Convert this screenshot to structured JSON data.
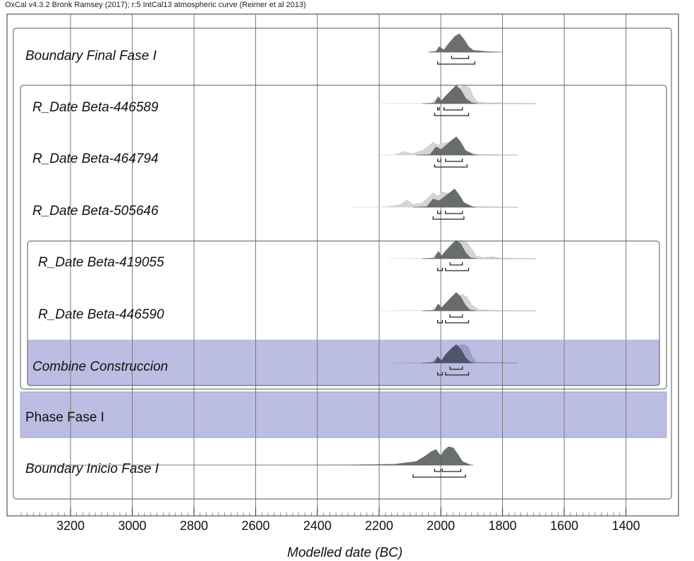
{
  "header": "OxCal v4.3.2 Bronk Ramsey (2017); r:5 IntCal13 atmospheric curve (Reimer et al 2013)",
  "chart_data": {
    "type": "density",
    "xlabel": "Modelled date (BC)",
    "xlim": [
      3380,
      1400
    ],
    "x_ticks": [
      3200,
      3000,
      2800,
      2600,
      2400,
      2200,
      2000,
      1800,
      1600,
      1400
    ],
    "grid": true,
    "rows": [
      {
        "label": "Boundary Final Fase I",
        "kind": "boundary",
        "range_68": [
          [
            1965,
            1910
          ]
        ],
        "range_95": [
          [
            2010,
            1890
          ]
        ],
        "prior": null,
        "posterior": [
          [
            2040,
            0
          ],
          [
            2015,
            0.05
          ],
          [
            2005,
            0.3
          ],
          [
            1990,
            0.12
          ],
          [
            1975,
            0.45
          ],
          [
            1955,
            0.85
          ],
          [
            1940,
            1.0
          ],
          [
            1925,
            0.7
          ],
          [
            1910,
            0.3
          ],
          [
            1895,
            0.1
          ],
          [
            1850,
            0.03
          ],
          [
            1800,
            0
          ]
        ]
      },
      {
        "label": "R_Date Beta-446589",
        "kind": "rdate",
        "range_68": [
          [
            2010,
            2005
          ],
          [
            1990,
            1930
          ]
        ],
        "range_95": [
          [
            2020,
            1910
          ]
        ],
        "prior": [
          [
            2200,
            0
          ],
          [
            2030,
            0.02
          ],
          [
            2010,
            0.35
          ],
          [
            1995,
            0.2
          ],
          [
            1980,
            0.5
          ],
          [
            1960,
            0.75
          ],
          [
            1945,
            0.85
          ],
          [
            1935,
            0.9
          ],
          [
            1920,
            1.0
          ],
          [
            1905,
            0.85
          ],
          [
            1895,
            0.4
          ],
          [
            1880,
            0.1
          ],
          [
            1850,
            0.04
          ],
          [
            1810,
            0.05
          ],
          [
            1790,
            0.02
          ],
          [
            1690,
            0
          ]
        ],
        "posterior": [
          [
            2060,
            0
          ],
          [
            2020,
            0.03
          ],
          [
            2008,
            0.38
          ],
          [
            1998,
            0.15
          ],
          [
            1985,
            0.4
          ],
          [
            1965,
            0.75
          ],
          [
            1950,
            1.0
          ],
          [
            1935,
            0.75
          ],
          [
            1920,
            0.3
          ],
          [
            1900,
            0.05
          ],
          [
            1880,
            0
          ]
        ]
      },
      {
        "label": "R_Date Beta-464794",
        "kind": "rdate",
        "range_68": [
          [
            2010,
            2000
          ],
          [
            1985,
            1930
          ]
        ],
        "range_95": [
          [
            2020,
            1915
          ]
        ],
        "prior": [
          [
            2210,
            0
          ],
          [
            2150,
            0.02
          ],
          [
            2120,
            0.2
          ],
          [
            2095,
            0.08
          ],
          [
            2060,
            0.25
          ],
          [
            2040,
            0.5
          ],
          [
            2025,
            0.7
          ],
          [
            2010,
            0.55
          ],
          [
            1995,
            0.65
          ],
          [
            1975,
            0.7
          ],
          [
            1955,
            0.85
          ],
          [
            1940,
            0.6
          ],
          [
            1920,
            0.25
          ],
          [
            1890,
            0.05
          ],
          [
            1750,
            0
          ]
        ],
        "posterior": [
          [
            2080,
            0
          ],
          [
            2035,
            0.03
          ],
          [
            2015,
            0.45
          ],
          [
            2000,
            0.3
          ],
          [
            1985,
            0.5
          ],
          [
            1965,
            0.8
          ],
          [
            1950,
            1.0
          ],
          [
            1935,
            0.7
          ],
          [
            1920,
            0.25
          ],
          [
            1895,
            0.03
          ],
          [
            1880,
            0
          ]
        ]
      },
      {
        "label": "R_Date Beta-505646",
        "kind": "rdate",
        "range_68": [
          [
            2010,
            2000
          ],
          [
            1985,
            1930
          ]
        ],
        "range_95": [
          [
            2025,
            1925
          ]
        ],
        "prior": [
          [
            2290,
            0
          ],
          [
            2180,
            0.02
          ],
          [
            2130,
            0.15
          ],
          [
            2110,
            0.4
          ],
          [
            2090,
            0.15
          ],
          [
            2060,
            0.25
          ],
          [
            2040,
            0.55
          ],
          [
            2025,
            0.8
          ],
          [
            2010,
            0.6
          ],
          [
            1995,
            0.85
          ],
          [
            1975,
            0.75
          ],
          [
            1960,
            0.95
          ],
          [
            1945,
            0.7
          ],
          [
            1925,
            0.25
          ],
          [
            1895,
            0.04
          ],
          [
            1750,
            0
          ]
        ],
        "posterior": [
          [
            2090,
            0
          ],
          [
            2045,
            0.03
          ],
          [
            2025,
            0.45
          ],
          [
            2005,
            0.35
          ],
          [
            1990,
            0.55
          ],
          [
            1970,
            0.8
          ],
          [
            1955,
            1.0
          ],
          [
            1940,
            0.65
          ],
          [
            1925,
            0.25
          ],
          [
            1900,
            0.03
          ],
          [
            1885,
            0
          ]
        ]
      },
      {
        "label": "R_Date Beta-419055",
        "kind": "rdate",
        "range_68": [
          [
            1970,
            1930
          ]
        ],
        "range_95": [
          [
            2010,
            1995
          ],
          [
            1985,
            1910
          ]
        ],
        "prior": [
          [
            2170,
            0
          ],
          [
            2030,
            0.02
          ],
          [
            2010,
            0.35
          ],
          [
            1998,
            0.15
          ],
          [
            1980,
            0.55
          ],
          [
            1965,
            0.85
          ],
          [
            1950,
            0.95
          ],
          [
            1935,
            1.0
          ],
          [
            1915,
            0.9
          ],
          [
            1900,
            0.55
          ],
          [
            1885,
            0.15
          ],
          [
            1860,
            0.05
          ],
          [
            1835,
            0.12
          ],
          [
            1815,
            0.05
          ],
          [
            1770,
            0.02
          ],
          [
            1690,
            0
          ]
        ],
        "posterior": [
          [
            2060,
            0
          ],
          [
            2020,
            0.03
          ],
          [
            2008,
            0.4
          ],
          [
            1997,
            0.15
          ],
          [
            1985,
            0.4
          ],
          [
            1965,
            0.75
          ],
          [
            1950,
            1.0
          ],
          [
            1935,
            0.8
          ],
          [
            1920,
            0.35
          ],
          [
            1905,
            0.06
          ],
          [
            1885,
            0
          ]
        ]
      },
      {
        "label": "R_Date Beta-446590",
        "kind": "rdate",
        "range_68": [
          [
            1970,
            1930
          ]
        ],
        "range_95": [
          [
            2010,
            1995
          ],
          [
            1985,
            1910
          ]
        ],
        "prior": [
          [
            2200,
            0
          ],
          [
            2030,
            0.02
          ],
          [
            2010,
            0.3
          ],
          [
            1998,
            0.15
          ],
          [
            1980,
            0.45
          ],
          [
            1960,
            0.75
          ],
          [
            1945,
            0.85
          ],
          [
            1930,
            0.9
          ],
          [
            1915,
            0.75
          ],
          [
            1900,
            0.35
          ],
          [
            1880,
            0.08
          ],
          [
            1840,
            0.04
          ],
          [
            1810,
            0.02
          ],
          [
            1690,
            0
          ]
        ],
        "posterior": [
          [
            2060,
            0
          ],
          [
            2020,
            0.03
          ],
          [
            2008,
            0.38
          ],
          [
            1998,
            0.15
          ],
          [
            1985,
            0.4
          ],
          [
            1965,
            0.75
          ],
          [
            1950,
            1.0
          ],
          [
            1935,
            0.75
          ],
          [
            1920,
            0.3
          ],
          [
            1905,
            0.05
          ],
          [
            1885,
            0
          ]
        ]
      },
      {
        "label": "Combine Construccion",
        "kind": "combine",
        "range_68": [
          [
            1970,
            1930
          ]
        ],
        "range_95": [
          [
            2010,
            1995
          ],
          [
            1985,
            1910
          ]
        ],
        "prior": [
          [
            2150,
            0
          ],
          [
            2030,
            0.02
          ],
          [
            2012,
            0.3
          ],
          [
            1998,
            0.1
          ],
          [
            1980,
            0.5
          ],
          [
            1960,
            0.85
          ],
          [
            1945,
            0.95
          ],
          [
            1925,
            1.0
          ],
          [
            1910,
            0.85
          ],
          [
            1898,
            0.3
          ],
          [
            1885,
            0.05
          ],
          [
            1750,
            0
          ]
        ],
        "posterior": [
          [
            2060,
            0
          ],
          [
            2020,
            0.03
          ],
          [
            2010,
            0.35
          ],
          [
            1998,
            0.12
          ],
          [
            1985,
            0.45
          ],
          [
            1965,
            0.8
          ],
          [
            1950,
            1.0
          ],
          [
            1935,
            0.75
          ],
          [
            1920,
            0.3
          ],
          [
            1905,
            0.05
          ],
          [
            1890,
            0
          ]
        ]
      },
      {
        "label": "Phase Fase I",
        "kind": "phase",
        "range_68": [],
        "range_95": [],
        "prior": null,
        "posterior": null
      },
      {
        "label": "Boundary Inicio Fase I",
        "kind": "boundary",
        "range_68": [
          [
            2020,
            2000
          ],
          [
            1995,
            1935
          ]
        ],
        "range_95": [
          [
            2090,
            1920
          ]
        ],
        "prior": null,
        "posterior": [
          [
            3330,
            0
          ],
          [
            2300,
            0.01
          ],
          [
            2150,
            0.05
          ],
          [
            2080,
            0.2
          ],
          [
            2050,
            0.5
          ],
          [
            2030,
            0.75
          ],
          [
            2015,
            0.85
          ],
          [
            2000,
            0.5
          ],
          [
            1990,
            0.8
          ],
          [
            1975,
            1.0
          ],
          [
            1960,
            0.95
          ],
          [
            1945,
            0.6
          ],
          [
            1930,
            0.2
          ],
          [
            1905,
            0.02
          ],
          [
            1895,
            0
          ]
        ]
      }
    ]
  },
  "colors": {
    "posterior": "#5e6364",
    "prior": "#d3d3d3",
    "combine_band": "#bcbde2",
    "combine_posterior": "#4a4e63",
    "combine_prior": "#9090c4",
    "frame": "#555555",
    "grid": "#7a7a7a"
  }
}
